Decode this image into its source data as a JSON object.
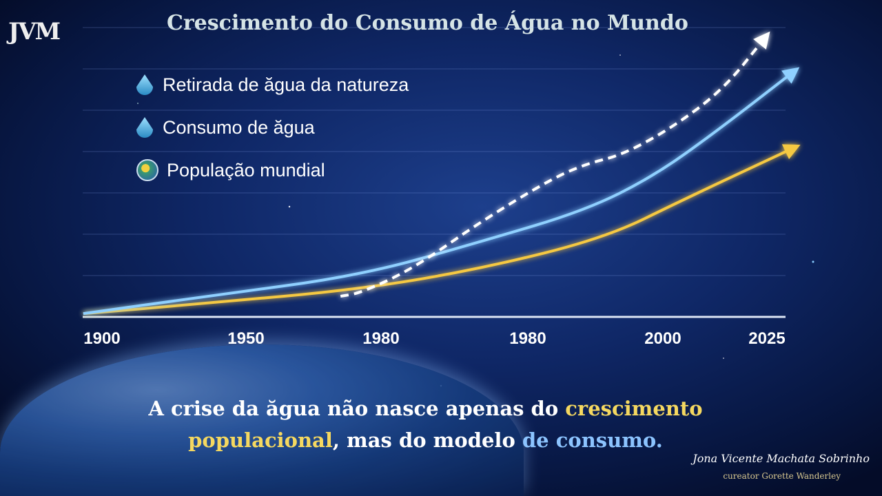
{
  "logo": "JVM",
  "chart_data": {
    "type": "line",
    "title": "Crescimento do Consumo de Água no Mundo",
    "categories": [
      "1900",
      "1950",
      "1980",
      "1980",
      "2000",
      "2025"
    ],
    "xlabel": "",
    "ylabel": "",
    "y_unit": "relative index (gridline units, no scale shown)",
    "ylim": [
      0,
      7
    ],
    "grid": true,
    "legend_position": "top-left",
    "series": [
      {
        "name": "Retirada de ăgua da natureza",
        "style": "dashed",
        "color": "#ffffff",
        "x": [
          1.7,
          1.85,
          2.22,
          2.69,
          3.17,
          3.43,
          3.7,
          4.09,
          4.58,
          4.98
        ],
        "y": [
          0.5,
          0.58,
          1.17,
          2.33,
          3.33,
          3.7,
          3.92,
          4.58,
          5.5,
          6.75
        ]
      },
      {
        "name": "Consumo de ăgua",
        "style": "solid",
        "color": "#8fd0ff",
        "x": [
          -0.13,
          0.73,
          1.85,
          2.69,
          3.43,
          3.94,
          4.52,
          5.25
        ],
        "y": [
          0.08,
          0.5,
          1.0,
          1.83,
          2.58,
          3.42,
          4.5,
          5.92
        ]
      },
      {
        "name": "População mundial",
        "style": "solid",
        "color": "#f5c842",
        "x": [
          -0.13,
          0.73,
          1.85,
          2.69,
          3.58,
          4.19,
          5.25
        ],
        "y": [
          0.08,
          0.33,
          0.67,
          1.17,
          1.92,
          2.83,
          4.08
        ]
      }
    ]
  },
  "quote": {
    "p1": "A crise da ăgua não nasce apenas do ",
    "p2": "crescimento",
    "p3": "populacional",
    ",p4": "",
    "p4": ", mas do modelo ",
    "p5": "de consumo."
  },
  "signature": "Jona Vicente Machata Sobrinho",
  "curator": "cureator Gorette Wanderley"
}
